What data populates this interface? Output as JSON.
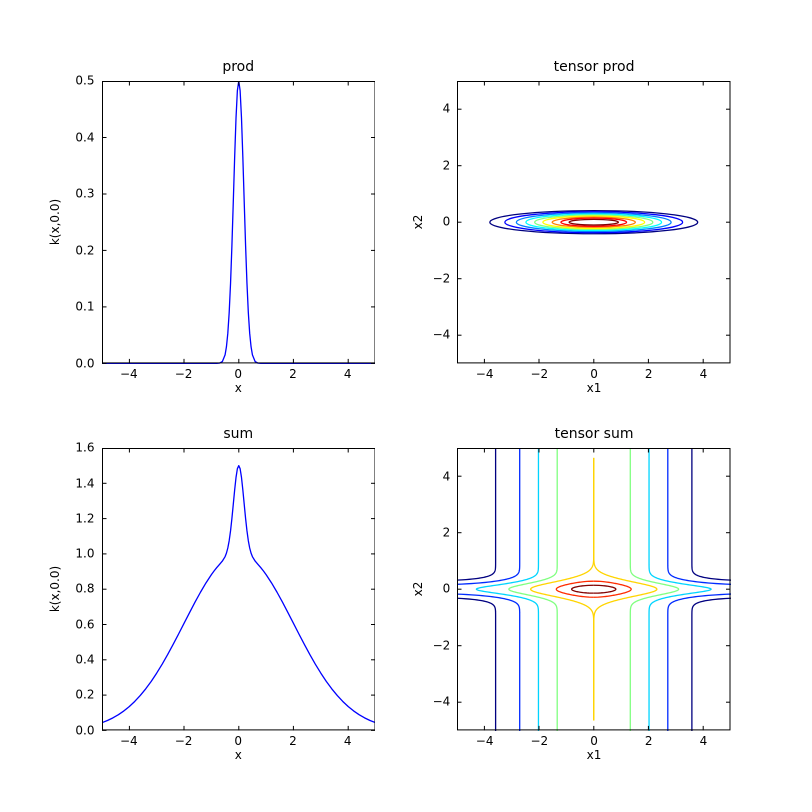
{
  "figure": {
    "background": "#ffffff",
    "frame_color": "#000000",
    "text_color": "#000000",
    "colormap": "jet"
  },
  "chart_data": [
    {
      "id": "prod",
      "type": "line",
      "title": "prod",
      "xlabel": "x",
      "ylabel": "k(x,0.0)",
      "xlim": [
        -5,
        5
      ],
      "ylim": [
        0,
        0.5
      ],
      "xticks": [
        -4,
        -2,
        0,
        2,
        4
      ],
      "xtick_labels": [
        "−4",
        "−2",
        "0",
        "2",
        "4"
      ],
      "yticks": [
        0,
        0.1,
        0.2,
        0.3,
        0.4,
        0.5
      ],
      "ytick_labels": [
        "0.0",
        "0.1",
        "0.2",
        "0.3",
        "0.4",
        "0.5"
      ],
      "grid": false,
      "legend": null,
      "line_color": "#0000ff",
      "points": [
        [
          -5,
          0
        ],
        [
          -4,
          0
        ],
        [
          -3,
          0
        ],
        [
          -2,
          0
        ],
        [
          -1.5,
          0
        ],
        [
          -1,
          0
        ],
        [
          -0.9,
          0
        ],
        [
          -0.8,
          0.0001
        ],
        [
          -0.7,
          0.0005
        ],
        [
          -0.6,
          0.0032
        ],
        [
          -0.5,
          0.0151
        ],
        [
          -0.45,
          0.0294
        ],
        [
          -0.4,
          0.0532
        ],
        [
          -0.35,
          0.09
        ],
        [
          -0.3,
          0.1419
        ],
        [
          -0.25,
          0.2084
        ],
        [
          -0.2,
          0.2856
        ],
        [
          -0.15,
          0.3648
        ],
        [
          -0.1,
          0.4347
        ],
        [
          -0.05,
          0.483
        ],
        [
          0,
          0.5
        ],
        [
          0.05,
          0.483
        ],
        [
          0.1,
          0.4347
        ],
        [
          0.15,
          0.3648
        ],
        [
          0.2,
          0.2856
        ],
        [
          0.25,
          0.2084
        ],
        [
          0.3,
          0.1419
        ],
        [
          0.35,
          0.09
        ],
        [
          0.4,
          0.0532
        ],
        [
          0.45,
          0.0294
        ],
        [
          0.5,
          0.0151
        ],
        [
          0.6,
          0.0032
        ],
        [
          0.7,
          0.0005
        ],
        [
          0.8,
          0.0001
        ],
        [
          0.9,
          0
        ],
        [
          1,
          0
        ],
        [
          1.5,
          0
        ],
        [
          2,
          0
        ],
        [
          3,
          0
        ],
        [
          4,
          0
        ],
        [
          5,
          0
        ]
      ]
    },
    {
      "id": "tensor_prod",
      "type": "contour",
      "contour_style": "ellipses",
      "title": "tensor prod",
      "xlabel": "x1",
      "ylabel": "x2",
      "xlim": [
        -5,
        5
      ],
      "ylim": [
        -5,
        5
      ],
      "xticks": [
        -4,
        -2,
        0,
        2,
        4
      ],
      "xtick_labels": [
        "−4",
        "−2",
        "0",
        "2",
        "4"
      ],
      "yticks": [
        -4,
        -2,
        0,
        2,
        4
      ],
      "ytick_labels": [
        "−4",
        "−2",
        "0",
        "2",
        "4"
      ],
      "grid": false,
      "center": [
        0,
        0
      ],
      "rings": [
        {
          "level": 0.05,
          "color": "#000080",
          "rx": 3.8,
          "ry": 0.41
        },
        {
          "level": 0.1,
          "color": "#0000ff",
          "rx": 3.25,
          "ry": 0.37
        },
        {
          "level": 0.15,
          "color": "#0080ff",
          "rx": 2.83,
          "ry": 0.33
        },
        {
          "level": 0.2,
          "color": "#00ffff",
          "rx": 2.48,
          "ry": 0.29
        },
        {
          "level": 0.25,
          "color": "#80ff80",
          "rx": 2.16,
          "ry": 0.255
        },
        {
          "level": 0.3,
          "color": "#ffff00",
          "rx": 1.86,
          "ry": 0.22
        },
        {
          "level": 0.35,
          "color": "#ff8000",
          "rx": 1.52,
          "ry": 0.18
        },
        {
          "level": 0.4,
          "color": "#ff0000",
          "rx": 1.2,
          "ry": 0.145
        },
        {
          "level": 0.45,
          "color": "#800000",
          "rx": 0.9,
          "ry": 0.1
        }
      ]
    },
    {
      "id": "sum",
      "type": "line",
      "title": "sum",
      "xlabel": "x",
      "ylabel": "k(x,0.0)",
      "xlim": [
        -5,
        5
      ],
      "ylim": [
        0,
        1.6
      ],
      "xticks": [
        -4,
        -2,
        0,
        2,
        4
      ],
      "xtick_labels": [
        "−4",
        "−2",
        "0",
        "2",
        "4"
      ],
      "yticks": [
        0,
        0.2,
        0.4,
        0.6,
        0.8,
        1.0,
        1.2,
        1.4,
        1.6
      ],
      "ytick_labels": [
        "0.0",
        "0.2",
        "0.4",
        "0.6",
        "0.8",
        "1.0",
        "1.2",
        "1.4",
        "1.6"
      ],
      "grid": false,
      "legend": null,
      "line_color": "#0000ff",
      "points": [
        [
          -5,
          0.0439
        ],
        [
          -4.8,
          0.0561
        ],
        [
          -4.6,
          0.071
        ],
        [
          -4.4,
          0.0889
        ],
        [
          -4.2,
          0.1103
        ],
        [
          -4,
          0.1353
        ],
        [
          -3.8,
          0.1645
        ],
        [
          -3.6,
          0.1979
        ],
        [
          -3.4,
          0.2358
        ],
        [
          -3.2,
          0.278
        ],
        [
          -3,
          0.3247
        ],
        [
          -2.8,
          0.3753
        ],
        [
          -2.6,
          0.4296
        ],
        [
          -2.4,
          0.4868
        ],
        [
          -2.2,
          0.5461
        ],
        [
          -2,
          0.6065
        ],
        [
          -1.8,
          0.667
        ],
        [
          -1.6,
          0.7262
        ],
        [
          -1.4,
          0.7827
        ],
        [
          -1.2,
          0.8353
        ],
        [
          -1,
          0.8826
        ],
        [
          -0.9,
          0.9038
        ],
        [
          -0.8,
          0.9232
        ],
        [
          -0.7,
          0.9412
        ],
        [
          -0.6,
          0.9592
        ],
        [
          -0.5,
          0.9843
        ],
        [
          -0.45,
          1.0043
        ],
        [
          -0.4,
          1.0334
        ],
        [
          -0.35,
          1.0748
        ],
        [
          -0.3,
          1.1307
        ],
        [
          -0.25,
          1.2006
        ],
        [
          -0.2,
          1.2806
        ],
        [
          -0.15,
          1.362
        ],
        [
          -0.1,
          1.4334
        ],
        [
          -0.05,
          1.4827
        ],
        [
          0,
          1.5
        ],
        [
          0.05,
          1.4827
        ],
        [
          0.1,
          1.4334
        ],
        [
          0.15,
          1.362
        ],
        [
          0.2,
          1.2806
        ],
        [
          0.25,
          1.2006
        ],
        [
          0.3,
          1.1307
        ],
        [
          0.35,
          1.0748
        ],
        [
          0.4,
          1.0334
        ],
        [
          0.45,
          1.0043
        ],
        [
          0.5,
          0.9843
        ],
        [
          0.6,
          0.9592
        ],
        [
          0.7,
          0.9412
        ],
        [
          0.8,
          0.9232
        ],
        [
          0.9,
          0.9038
        ],
        [
          1,
          0.8826
        ],
        [
          1.2,
          0.8353
        ],
        [
          1.4,
          0.7827
        ],
        [
          1.6,
          0.7262
        ],
        [
          1.8,
          0.667
        ],
        [
          2,
          0.6065
        ],
        [
          2.2,
          0.5461
        ],
        [
          2.4,
          0.4868
        ],
        [
          2.6,
          0.4296
        ],
        [
          2.8,
          0.3753
        ],
        [
          3,
          0.3247
        ],
        [
          3.2,
          0.278
        ],
        [
          3.4,
          0.2358
        ],
        [
          3.6,
          0.1979
        ],
        [
          3.8,
          0.1645
        ],
        [
          4,
          0.1353
        ],
        [
          4.2,
          0.1103
        ],
        [
          4.4,
          0.0889
        ],
        [
          4.6,
          0.071
        ],
        [
          4.8,
          0.0561
        ],
        [
          5,
          0.0439
        ]
      ]
    },
    {
      "id": "tensor_sum",
      "type": "contour",
      "contour_style": "cross",
      "title": "tensor sum",
      "xlabel": "x1",
      "ylabel": "x2",
      "xlim": [
        -5,
        5
      ],
      "ylim": [
        -5,
        5
      ],
      "xticks": [
        -4,
        -2,
        0,
        2,
        4
      ],
      "xtick_labels": [
        "−4",
        "−2",
        "0",
        "2",
        "4"
      ],
      "yticks": [
        -4,
        -2,
        0,
        2,
        4
      ],
      "ytick_labels": [
        "−4",
        "−2",
        "0",
        "2",
        "4"
      ],
      "grid": false,
      "params": {
        "g_lengthscale": 2,
        "h_sigma": 0.21,
        "h_amp": 0.5
      },
      "levels": [
        {
          "level": 0.2,
          "color": "#000080",
          "xscale": 1
        },
        {
          "level": 0.4,
          "color": "#002bff",
          "xscale": 1
        },
        {
          "level": 0.6,
          "color": "#00d4ff",
          "xscale": 1
        },
        {
          "level": 0.8,
          "color": "#80ff80",
          "xscale": 1
        },
        {
          "level": 1.0,
          "color": "#ffd400",
          "xscale": 0.98,
          "ymax": 4.65
        },
        {
          "level": 1.2,
          "color": "#ff2b00",
          "xscale": 0.81
        },
        {
          "level": 1.4,
          "color": "#800000",
          "xscale": 0.88
        }
      ]
    }
  ]
}
